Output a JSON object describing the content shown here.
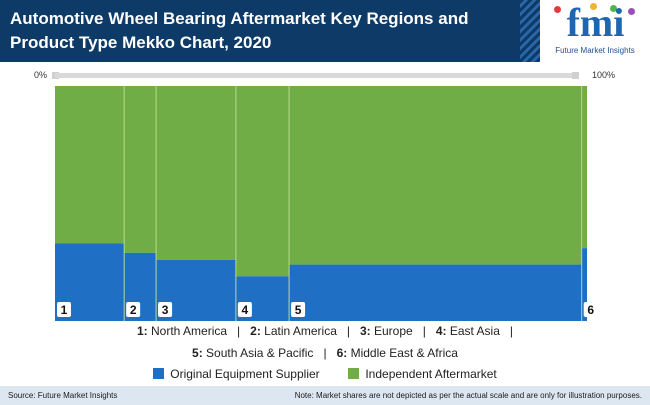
{
  "header": {
    "title": "Automotive Wheel Bearing Aftermarket Key Regions and Product Type Mekko Chart, 2020"
  },
  "logo": {
    "text": "fmi",
    "subtitle": "Future Market Insights",
    "dot_colors": [
      "#e23b3b",
      "#f2b233",
      "#4db848",
      "#9a4fb8"
    ]
  },
  "scale": {
    "left_label": "0%",
    "right_label": "100%"
  },
  "chart_data": {
    "type": "mekko",
    "categories": [
      "1",
      "2",
      "3",
      "4",
      "5",
      "6"
    ],
    "widths": [
      13,
      6,
      15,
      10,
      55,
      1
    ],
    "series": [
      {
        "name": "Original Equipment Supplier",
        "color": "#1f6fc5",
        "values": [
          33,
          29,
          26,
          19,
          24,
          31
        ]
      },
      {
        "name": "Independent Aftermarket",
        "color": "#70ad47",
        "values": [
          67,
          71,
          74,
          81,
          76,
          69
        ]
      }
    ],
    "ylim": [
      0,
      100
    ]
  },
  "region_legend": {
    "line1": [
      {
        "num": "1:",
        "name": " North America"
      },
      {
        "num": "2:",
        "name": " Latin America"
      },
      {
        "num": "3:",
        "name": " Europe"
      },
      {
        "num": "4:",
        "name": " East Asia"
      }
    ],
    "line2": [
      {
        "num": "5:",
        "name": " South Asia & Pacific"
      },
      {
        "num": "6:",
        "name": " Middle East & Africa"
      }
    ]
  },
  "footer": {
    "source": "Source: Future Market Insights",
    "note": "Note: Market shares are not depicted as per the actual scale and are only for illustration purposes."
  }
}
